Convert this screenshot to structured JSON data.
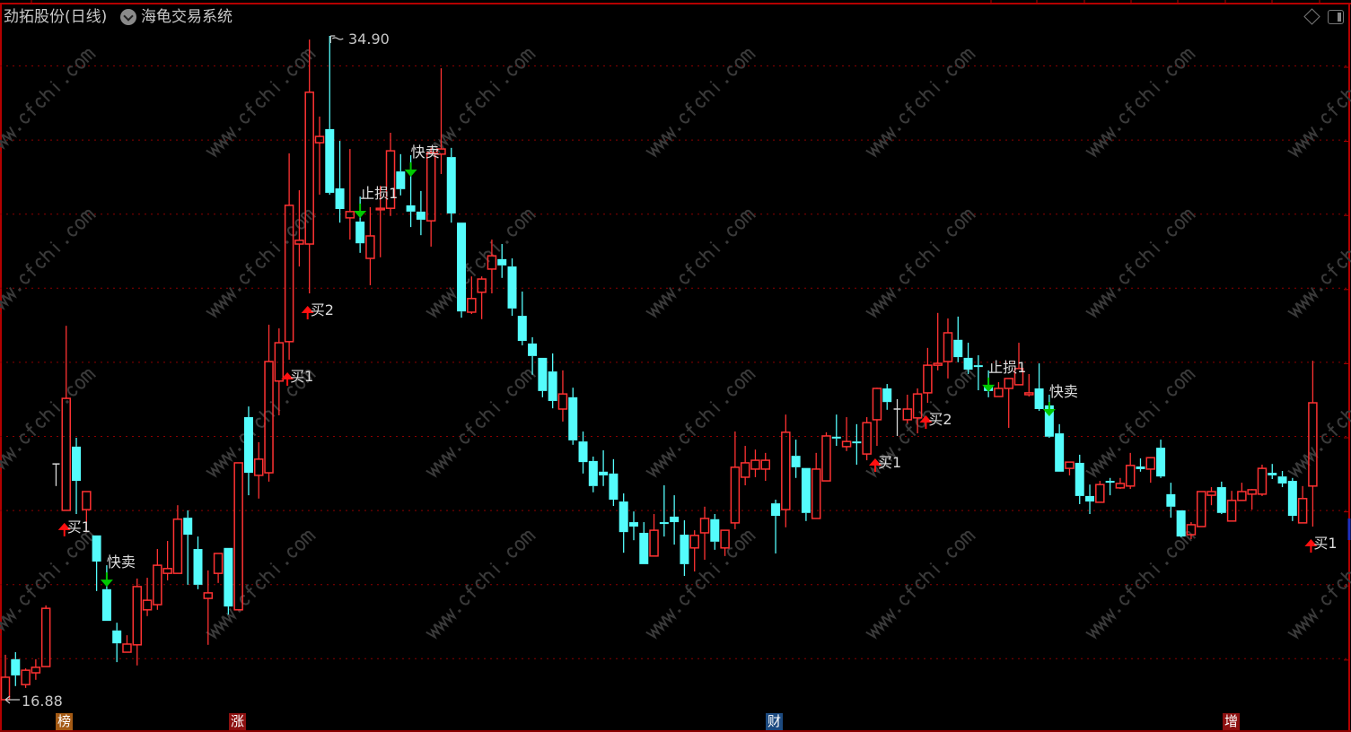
{
  "header": {
    "stock_title": "劲拓股份(日线)",
    "indicator_dropdown_icon": "chevron-down-circle-icon",
    "indicator_name": "海龟交易系统",
    "right_icons": [
      "diamond-icon",
      "panel-toggle-icon"
    ]
  },
  "price_markers": {
    "max_label": "34.90",
    "min_label": "16.88"
  },
  "bottom_badges": [
    {
      "label": "榜",
      "color": "#a45a14"
    },
    {
      "label": "涨",
      "color": "#8c1010"
    },
    {
      "label": "财",
      "color": "#1c4a80"
    },
    {
      "label": "增",
      "color": "#8c1010"
    }
  ],
  "watermark": "www.cfchi.com",
  "colors": {
    "background": "#000000",
    "up": "#ff3232",
    "down": "#54fcfc",
    "flat": "#d8d8d8",
    "grid": "#8c0000",
    "buy_arrow": "#ff1010",
    "sell_arrow": "#00c800",
    "label_text": "#dcdcdc"
  },
  "chart_data": {
    "type": "candlestick",
    "period": "日线",
    "ylim": [
      16.88,
      34.9
    ],
    "grid": true,
    "ohlc_order": [
      "open",
      "high",
      "low",
      "close"
    ],
    "candles": [
      [
        16.88,
        18.1,
        16.88,
        17.49
      ],
      [
        17.98,
        18.17,
        17.25,
        17.54
      ],
      [
        17.29,
        17.73,
        17.2,
        17.68
      ],
      [
        17.61,
        17.98,
        17.42,
        17.76
      ],
      [
        17.78,
        19.44,
        17.78,
        19.36
      ],
      [
        23.28,
        23.28,
        22.68,
        23.28
      ],
      [
        22.02,
        27.03,
        22.02,
        25.06
      ],
      [
        23.75,
        23.99,
        21.92,
        22.82
      ],
      [
        22.04,
        22.53,
        21.43,
        22.53
      ],
      [
        21.34,
        21.34,
        19.83,
        20.63
      ],
      [
        19.88,
        20.53,
        19.02,
        19.02
      ],
      [
        18.76,
        18.97,
        17.9,
        18.41
      ],
      [
        18.17,
        18.63,
        18.17,
        18.39
      ],
      [
        18.37,
        20.17,
        17.81,
        19.95
      ],
      [
        19.32,
        20.19,
        19.15,
        19.58
      ],
      [
        19.46,
        20.97,
        19.32,
        20.53
      ],
      [
        20.31,
        21.19,
        20.12,
        20.44
      ],
      [
        20.31,
        22.16,
        20.31,
        21.78
      ],
      [
        21.82,
        22.02,
        20.0,
        21.36
      ],
      [
        20.97,
        21.31,
        19.88,
        20.0
      ],
      [
        19.63,
        20.39,
        18.37,
        19.78
      ],
      [
        20.31,
        20.85,
        20.05,
        20.85
      ],
      [
        21.0,
        21.0,
        19.19,
        19.41
      ],
      [
        19.32,
        23.31,
        19.32,
        23.31
      ],
      [
        24.55,
        24.84,
        22.43,
        23.04
      ],
      [
        22.97,
        23.87,
        22.34,
        23.41
      ],
      [
        23.04,
        27.06,
        22.8,
        26.06
      ],
      [
        25.53,
        26.96,
        24.6,
        26.57
      ],
      [
        26.6,
        31.71,
        26.11,
        30.3
      ],
      [
        29.25,
        30.71,
        28.64,
        29.35
      ],
      [
        29.25,
        34.8,
        27.91,
        33.37
      ],
      [
        32.0,
        32.71,
        30.59,
        32.17
      ],
      [
        32.37,
        34.9,
        30.59,
        30.64
      ],
      [
        30.76,
        32.05,
        29.83,
        30.2
      ],
      [
        29.96,
        31.83,
        29.37,
        30.13
      ],
      [
        29.86,
        30.54,
        29.01,
        29.27
      ],
      [
        28.86,
        30.25,
        28.13,
        29.47
      ],
      [
        30.18,
        30.83,
        28.89,
        30.22
      ],
      [
        30.22,
        32.27,
        30.01,
        31.78
      ],
      [
        31.22,
        31.69,
        30.57,
        30.74
      ],
      [
        30.3,
        31.66,
        29.71,
        30.13
      ],
      [
        30.13,
        30.69,
        29.49,
        29.91
      ],
      [
        29.88,
        31.86,
        29.18,
        31.73
      ],
      [
        31.69,
        34.02,
        31.15,
        31.83
      ],
      [
        31.61,
        31.86,
        29.83,
        30.08
      ],
      [
        29.83,
        29.83,
        27.25,
        27.42
      ],
      [
        27.4,
        28.37,
        27.35,
        27.77
      ],
      [
        27.94,
        28.37,
        27.21,
        28.3
      ],
      [
        28.57,
        29.37,
        27.91,
        28.93
      ],
      [
        28.84,
        29.25,
        28.33,
        28.67
      ],
      [
        28.64,
        28.86,
        27.3,
        27.5
      ],
      [
        27.3,
        27.96,
        26.5,
        26.62
      ],
      [
        26.55,
        26.72,
        25.7,
        26.21
      ],
      [
        26.16,
        26.16,
        25.09,
        25.26
      ],
      [
        25.79,
        26.28,
        24.79,
        24.99
      ],
      [
        24.77,
        25.82,
        24.43,
        25.18
      ],
      [
        25.09,
        25.35,
        23.8,
        23.92
      ],
      [
        23.89,
        24.16,
        23.02,
        23.33
      ],
      [
        23.36,
        23.48,
        22.51,
        22.68
      ],
      [
        23.07,
        23.65,
        22.68,
        22.97
      ],
      [
        23.02,
        23.41,
        22.14,
        22.31
      ],
      [
        22.26,
        22.48,
        20.87,
        21.43
      ],
      [
        21.7,
        21.99,
        21.21,
        21.58
      ],
      [
        21.41,
        21.7,
        20.56,
        20.56
      ],
      [
        20.78,
        21.92,
        20.78,
        21.48
      ],
      [
        21.7,
        22.7,
        21.31,
        21.65
      ],
      [
        21.85,
        22.43,
        21.09,
        21.7
      ],
      [
        21.36,
        21.75,
        20.24,
        20.56
      ],
      [
        21.0,
        21.48,
        20.36,
        21.34
      ],
      [
        21.41,
        22.12,
        20.68,
        21.8
      ],
      [
        21.78,
        21.92,
        20.95,
        21.17
      ],
      [
        21.0,
        21.48,
        20.78,
        21.48
      ],
      [
        21.68,
        24.16,
        21.51,
        23.19
      ],
      [
        22.92,
        23.77,
        22.7,
        23.31
      ],
      [
        23.14,
        23.67,
        22.92,
        23.38
      ],
      [
        23.14,
        23.58,
        22.82,
        23.38
      ],
      [
        22.21,
        22.31,
        20.85,
        21.87
      ],
      [
        22.04,
        24.62,
        21.56,
        24.14
      ],
      [
        23.5,
        23.94,
        22.9,
        23.19
      ],
      [
        23.17,
        23.17,
        21.73,
        21.95
      ],
      [
        21.8,
        23.58,
        21.8,
        23.14
      ],
      [
        22.82,
        24.14,
        22.82,
        24.04
      ],
      [
        24.02,
        24.62,
        23.77,
        23.97
      ],
      [
        23.75,
        24.55,
        23.63,
        23.89
      ],
      [
        23.89,
        24.36,
        23.26,
        23.87
      ],
      [
        23.55,
        24.55,
        23.38,
        24.4
      ],
      [
        24.48,
        25.35,
        23.77,
        25.33
      ],
      [
        25.33,
        25.45,
        24.75,
        24.96
      ],
      [
        24.77,
        25.04,
        24.04,
        24.77
      ],
      [
        24.48,
        25.16,
        24.38,
        24.77
      ],
      [
        24.53,
        25.33,
        24.11,
        25.18
      ],
      [
        25.21,
        26.43,
        24.94,
        25.96
      ],
      [
        25.96,
        27.38,
        25.82,
        26.01
      ],
      [
        26.06,
        27.23,
        25.6,
        26.84
      ],
      [
        26.65,
        27.28,
        26.04,
        26.18
      ],
      [
        26.16,
        26.57,
        25.72,
        25.84
      ],
      [
        25.96,
        26.23,
        25.28,
        25.94
      ],
      [
        25.38,
        25.82,
        25.09,
        25.26
      ],
      [
        25.11,
        25.5,
        25.11,
        25.33
      ],
      [
        25.33,
        25.6,
        24.26,
        25.6
      ],
      [
        25.43,
        26.57,
        25.43,
        25.87
      ],
      [
        25.16,
        25.72,
        25.11,
        25.21
      ],
      [
        25.33,
        26.01,
        24.72,
        24.77
      ],
      [
        24.87,
        25.16,
        23.99,
        24.02
      ],
      [
        24.11,
        24.36,
        23.07,
        23.07
      ],
      [
        23.16,
        23.33,
        22.97,
        23.33
      ],
      [
        23.31,
        23.53,
        22.19,
        22.41
      ],
      [
        22.41,
        22.72,
        21.92,
        22.26
      ],
      [
        22.24,
        22.82,
        22.24,
        22.72
      ],
      [
        22.82,
        22.9,
        22.43,
        22.8
      ],
      [
        22.63,
        22.9,
        22.6,
        22.75
      ],
      [
        22.68,
        23.58,
        22.6,
        23.24
      ],
      [
        23.21,
        23.43,
        23.07,
        23.14
      ],
      [
        23.14,
        23.45,
        22.77,
        23.45
      ],
      [
        23.72,
        23.94,
        22.9,
        22.94
      ],
      [
        22.46,
        22.77,
        21.82,
        22.12
      ],
      [
        22.02,
        22.02,
        21.29,
        21.31
      ],
      [
        21.36,
        21.7,
        21.24,
        21.63
      ],
      [
        21.58,
        22.53,
        21.58,
        22.53
      ],
      [
        22.43,
        22.65,
        22.16,
        22.53
      ],
      [
        22.65,
        22.8,
        21.92,
        21.95
      ],
      [
        21.73,
        22.55,
        21.73,
        22.29
      ],
      [
        22.29,
        22.77,
        22.29,
        22.53
      ],
      [
        22.46,
        22.6,
        22.04,
        22.58
      ],
      [
        22.46,
        23.26,
        22.41,
        23.16
      ],
      [
        23.04,
        23.28,
        22.87,
        22.97
      ],
      [
        22.94,
        23.09,
        22.65,
        22.75
      ],
      [
        22.82,
        22.9,
        21.73,
        21.87
      ],
      [
        21.68,
        22.68,
        21.68,
        22.34
      ],
      [
        22.68,
        26.08,
        21.58,
        24.94
      ]
    ],
    "signals": [
      {
        "candle": 6,
        "type": "buy",
        "label": "买1"
      },
      {
        "candle": 10,
        "type": "sell",
        "label": "快卖"
      },
      {
        "candle": 28,
        "type": "buy",
        "label": "买1"
      },
      {
        "candle": 30,
        "type": "buy",
        "label": "买2"
      },
      {
        "candle": 35,
        "type": "sell",
        "label": "止损1"
      },
      {
        "candle": 40,
        "type": "sell",
        "label": "快卖"
      },
      {
        "candle": 86,
        "type": "buy",
        "label": "买1"
      },
      {
        "candle": 91,
        "type": "buy",
        "label": "买2"
      },
      {
        "candle": 97,
        "type": "sell",
        "label": "止损1"
      },
      {
        "candle": 103,
        "type": "sell",
        "label": "快卖"
      },
      {
        "candle": 129,
        "type": "buy",
        "label": "买1"
      }
    ]
  }
}
